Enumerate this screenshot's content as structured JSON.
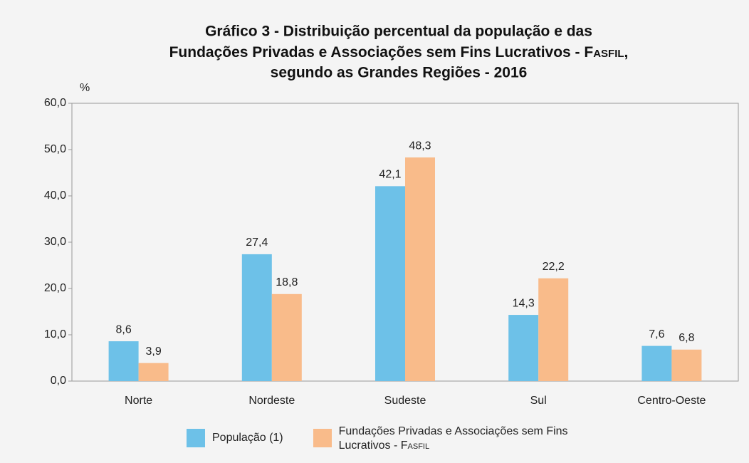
{
  "chart_data": {
    "type": "bar",
    "title": [
      "Gráfico 3 - Distribuição percentual da população e das",
      "Fundações Privadas e Associações sem Fins Lucrativos  - Fasfil,",
      "segundo as Grandes Regiões - 2016"
    ],
    "y_unit": "%",
    "categories": [
      "Norte",
      "Nordeste",
      "Sudeste",
      "Sul",
      "Centro-Oeste"
    ],
    "series": [
      {
        "name": "População (1)",
        "color": "#6dc1e8",
        "values": [
          8.6,
          27.4,
          42.1,
          14.3,
          7.6
        ],
        "value_labels": [
          "8,6",
          "27,4",
          "42,1",
          "14,3",
          "7,6"
        ]
      },
      {
        "name": "Fundações Privadas e Associações sem Fins Lucrativos  - Fasfil",
        "color": "#f9bb8a",
        "values": [
          3.9,
          18.8,
          48.3,
          22.2,
          6.8
        ],
        "value_labels": [
          "3,9",
          "18,8",
          "48,3",
          "22,2",
          "6,8"
        ]
      }
    ],
    "ylim": [
      0,
      60
    ],
    "yticks": [
      {
        "value": 0,
        "label": "0,0"
      },
      {
        "value": 10,
        "label": "10,0"
      },
      {
        "value": 20,
        "label": "20,0"
      },
      {
        "value": 30,
        "label": "30,0"
      },
      {
        "value": 40,
        "label": "40,0"
      },
      {
        "value": 50,
        "label": "50,0"
      },
      {
        "value": 60,
        "label": "60,0"
      }
    ],
    "grid": false
  }
}
